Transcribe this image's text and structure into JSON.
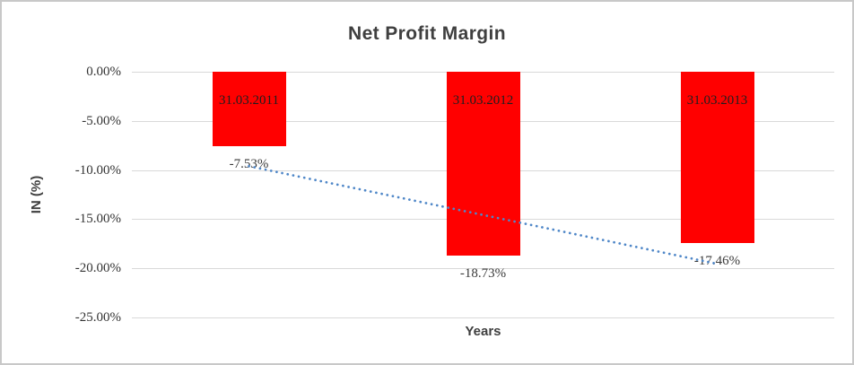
{
  "chart_data": {
    "type": "bar",
    "title": "Net Profit Margin",
    "xlabel": "Years",
    "ylabel": "IN (%)",
    "categories": [
      "31.03.2011",
      "31.03.2012",
      "31.03.2013"
    ],
    "values": [
      -7.53,
      -18.73,
      -17.46
    ],
    "value_labels": [
      "-7.53%",
      "-18.73%",
      "-17.46%"
    ],
    "ylim": [
      -25,
      0
    ],
    "grid": true,
    "legend": "none",
    "y_ticks": [
      {
        "label": "0.00%",
        "value": 0
      },
      {
        "label": "-5.00%",
        "value": -5
      },
      {
        "label": "-10.00%",
        "value": -10
      },
      {
        "label": "-15.00%",
        "value": -15
      },
      {
        "label": "-20.00%",
        "value": -20
      },
      {
        "label": "-25.00%",
        "value": -25
      }
    ],
    "bar_color": "#FF0000",
    "trendline": {
      "type": "linear",
      "style": "dotted",
      "color": "#4F87C8",
      "values": [
        -9.61,
        -14.57,
        -19.54
      ]
    }
  },
  "colors": {
    "gridline": "#D9D9D9",
    "title_text": "#3F3F3F",
    "tick_text": "#333333",
    "frame_border": "#C8C8C8"
  }
}
